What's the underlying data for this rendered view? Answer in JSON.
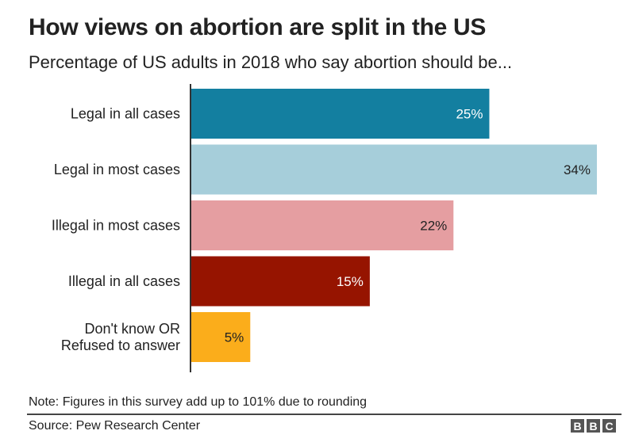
{
  "chart_data": {
    "type": "bar",
    "orientation": "horizontal",
    "title": "How views on abortion are split in the US",
    "subtitle": "Percentage of US adults in 2018 who say abortion should be...",
    "categories": [
      [
        "Legal in all cases"
      ],
      [
        "Legal in most cases"
      ],
      [
        "Illegal in most cases"
      ],
      [
        "Illegal in all cases"
      ],
      [
        "Don't know OR",
        "Refused to answer"
      ]
    ],
    "values": [
      25,
      34,
      22,
      15,
      5
    ],
    "value_labels": [
      "25%",
      "34%",
      "22%",
      "15%",
      "5%"
    ],
    "colors": [
      "#137fa0",
      "#a6ceda",
      "#e59ea1",
      "#961400",
      "#fbad1b"
    ],
    "label_colors": [
      "#ffffff",
      "#222222",
      "#222222",
      "#ffffff",
      "#222222"
    ],
    "xlabel": "",
    "ylabel": "",
    "xlim": [
      0,
      34
    ],
    "grid": false,
    "legend": "none"
  },
  "footer": {
    "note": "Note: Figures in this survey add up to 101% due to rounding",
    "source": "Source: Pew Research Center",
    "logo_letters": [
      "B",
      "B",
      "C"
    ]
  }
}
